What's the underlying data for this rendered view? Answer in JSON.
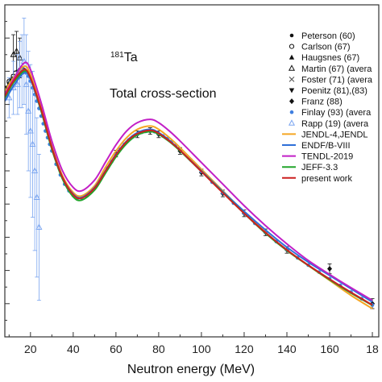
{
  "chart_data": {
    "type": "line",
    "xlabel": "Neutron energy (MeV)",
    "ylabel": "",
    "x_ticks": [
      "20",
      "40",
      "60",
      "80",
      "100",
      "120",
      "140",
      "160",
      "18"
    ],
    "xlim": [
      8,
      183
    ],
    "ylim": [
      0,
      10
    ],
    "grid": false,
    "legend_position": "top-right",
    "annotations": {
      "element_prefix": "181",
      "element_symbol": "Ta",
      "quantity": "Total cross-section"
    },
    "series": [
      {
        "name": "JENDL-4,JENDL",
        "color": "#f5a623",
        "kind": "line",
        "x": [
          8,
          12,
          17,
          20,
          25,
          30,
          35,
          40,
          44,
          50,
          55,
          60,
          65,
          70,
          76,
          80,
          85,
          90,
          100,
          110,
          120,
          130,
          140,
          150,
          160,
          170,
          180
        ],
        "y": [
          7.4,
          7.8,
          8.15,
          7.9,
          6.9,
          5.75,
          4.85,
          4.35,
          4.25,
          4.55,
          5.1,
          5.6,
          6.0,
          6.25,
          6.35,
          6.25,
          6.0,
          5.7,
          5.05,
          4.4,
          3.75,
          3.15,
          2.6,
          2.15,
          1.7,
          1.25,
          0.85
        ]
      },
      {
        "name": "ENDF/B-VIII",
        "color": "#2e6fd8",
        "kind": "line",
        "x": [
          8,
          12,
          17,
          20,
          25,
          30,
          35,
          40,
          44,
          50,
          55,
          60,
          65,
          70,
          76,
          80,
          85,
          90,
          100,
          110,
          120,
          130,
          140,
          150,
          160,
          170,
          180
        ],
        "y": [
          7.1,
          7.55,
          7.95,
          7.75,
          6.8,
          5.7,
          4.8,
          4.3,
          4.2,
          4.5,
          5.0,
          5.5,
          5.9,
          6.15,
          6.25,
          6.15,
          5.92,
          5.62,
          5.0,
          4.38,
          3.78,
          3.22,
          2.7,
          2.25,
          1.85,
          1.45,
          1.05
        ]
      },
      {
        "name": "TENDL-2019",
        "color": "#c21fc6",
        "kind": "line",
        "x": [
          8,
          12,
          17,
          20,
          25,
          30,
          35,
          40,
          44,
          50,
          55,
          60,
          65,
          70,
          76,
          80,
          85,
          90,
          100,
          110,
          120,
          130,
          140,
          150,
          160,
          170,
          180
        ],
        "y": [
          7.3,
          7.75,
          8.25,
          8.05,
          7.05,
          5.9,
          5.0,
          4.5,
          4.4,
          4.72,
          5.25,
          5.78,
          6.2,
          6.45,
          6.55,
          6.45,
          6.2,
          5.9,
          5.25,
          4.6,
          3.95,
          3.35,
          2.8,
          2.3,
          1.88,
          1.48,
          1.1
        ]
      },
      {
        "name": "JEFF-3.3",
        "color": "#22a52b",
        "kind": "line",
        "x": [
          8,
          12,
          17,
          20,
          25,
          30,
          35,
          40,
          44,
          50,
          55,
          60,
          65,
          70,
          76,
          80,
          85,
          90,
          100,
          110,
          120,
          130,
          140,
          150,
          160,
          170,
          180
        ],
        "y": [
          7.2,
          7.65,
          8.0,
          7.8,
          6.8,
          5.65,
          4.75,
          4.22,
          4.12,
          4.42,
          4.92,
          5.42,
          5.82,
          6.08,
          6.18,
          6.1,
          5.88,
          5.6,
          4.98,
          4.35,
          3.72,
          3.12,
          2.6,
          2.15,
          1.72,
          1.32,
          0.95
        ]
      },
      {
        "name": "present work",
        "color": "#cc1f1f",
        "kind": "line",
        "x": [
          8,
          12,
          17,
          20,
          25,
          30,
          35,
          40,
          44,
          50,
          55,
          60,
          65,
          70,
          76,
          80,
          85,
          90,
          100,
          110,
          120,
          130,
          140,
          150,
          160,
          170,
          180
        ],
        "y": [
          7.25,
          7.7,
          8.05,
          7.8,
          6.85,
          5.7,
          4.8,
          4.28,
          4.18,
          4.48,
          4.98,
          5.48,
          5.88,
          6.12,
          6.22,
          6.13,
          5.9,
          5.62,
          4.98,
          4.34,
          3.72,
          3.14,
          2.62,
          2.16,
          1.74,
          1.34,
          0.96
        ]
      },
      {
        "name": "Peterson (60)",
        "color": "#111111",
        "kind": "marker",
        "marker": "dot",
        "x": [
          9,
          10,
          11,
          12,
          13,
          14,
          15,
          16,
          17
        ],
        "y": [
          7.4,
          7.55,
          7.65,
          7.8,
          7.9,
          8.0,
          8.05,
          8.1,
          8.05
        ]
      },
      {
        "name": "Carlson (67)",
        "color": "#111111",
        "kind": "marker",
        "marker": "open-circle",
        "x": [
          10,
          11,
          12,
          13
        ],
        "y": [
          7.7,
          7.75,
          7.85,
          7.95
        ]
      },
      {
        "name": "Haugsnes (67)",
        "color": "#111111",
        "kind": "marker",
        "marker": "filled-triangle",
        "x": [
          9.5,
          10.5,
          11.5
        ],
        "y": [
          7.55,
          7.7,
          7.75
        ]
      },
      {
        "name": "Martin (67) (avera",
        "color": "#111111",
        "kind": "marker",
        "marker": "open-triangle",
        "x": [
          12,
          13.5,
          15
        ],
        "y": [
          8.5,
          8.6,
          8.4
        ],
        "yerr": [
          0.6,
          0.6,
          0.6
        ]
      },
      {
        "name": "Foster (71) (avera",
        "color": "#555555",
        "kind": "marker",
        "marker": "x",
        "x": [
          9,
          10.5,
          12
        ],
        "y": [
          7.5,
          7.65,
          7.8
        ]
      },
      {
        "name": "Poenitz (81),(83)",
        "color": "#111111",
        "kind": "marker",
        "marker": "filled-down-triangle",
        "x": [
          9,
          10,
          11
        ],
        "y": [
          7.5,
          7.6,
          7.72
        ]
      },
      {
        "name": "Franz (88)",
        "color": "#111111",
        "kind": "marker",
        "marker": "diamond",
        "x": [
          60,
          70,
          76,
          80,
          90,
          100,
          110,
          120,
          130,
          140,
          160,
          180
        ],
        "y": [
          5.52,
          6.1,
          6.2,
          6.1,
          5.6,
          4.95,
          4.32,
          3.72,
          3.15,
          2.62,
          2.05,
          1.0
        ],
        "yerr": [
          0.1,
          0.1,
          0.1,
          0.1,
          0.1,
          0.1,
          0.1,
          0.1,
          0.1,
          0.1,
          0.15,
          0.15
        ]
      },
      {
        "name": "Finlay (93) (avera",
        "color": "#3f7fe0",
        "kind": "marker",
        "marker": "dot",
        "x": [
          9,
          10,
          11,
          12,
          13,
          14,
          15,
          16,
          17,
          18,
          19,
          20,
          21,
          22,
          23,
          24,
          25,
          26,
          27,
          28,
          29,
          30,
          32,
          34,
          36,
          38,
          40,
          42,
          44,
          46,
          48,
          50,
          52,
          54,
          56,
          58,
          60,
          62,
          64,
          66,
          68,
          70,
          72,
          74,
          76,
          78,
          80,
          82,
          84,
          86,
          88,
          90,
          95,
          100,
          105,
          110,
          115,
          120,
          125,
          130,
          135,
          140,
          145,
          150,
          155,
          160,
          165,
          170,
          175,
          180
        ],
        "y": [
          7.3,
          7.45,
          7.6,
          7.75,
          7.85,
          7.95,
          8.0,
          8.05,
          8.0,
          7.95,
          7.85,
          7.7,
          7.5,
          7.3,
          7.1,
          6.88,
          6.65,
          6.42,
          6.2,
          6.0,
          5.8,
          5.6,
          5.2,
          4.88,
          4.6,
          4.4,
          4.26,
          4.18,
          4.18,
          4.24,
          4.36,
          4.5,
          4.68,
          4.88,
          5.08,
          5.28,
          5.48,
          5.65,
          5.8,
          5.93,
          6.03,
          6.1,
          6.16,
          6.19,
          6.2,
          6.18,
          6.12,
          6.05,
          5.97,
          5.88,
          5.77,
          5.65,
          5.33,
          4.98,
          4.66,
          4.34,
          4.03,
          3.72,
          3.42,
          3.14,
          2.87,
          2.62,
          2.38,
          2.16,
          1.95,
          1.75,
          1.55,
          1.35,
          1.15,
          0.96
        ]
      },
      {
        "name": "Rapp (19) (avera",
        "color": "#7aa5f0",
        "kind": "marker",
        "marker": "open-triangle",
        "x": [
          10,
          12,
          14,
          15,
          16,
          17,
          18,
          19,
          20,
          21,
          22,
          23,
          24
        ],
        "y": [
          7.2,
          7.5,
          7.6,
          7.9,
          8.0,
          8.3,
          7.6,
          6.8,
          6.2,
          5.8,
          5.0,
          4.2,
          3.3
        ],
        "yerr": [
          0.6,
          0.8,
          0.9,
          1.0,
          1.1,
          1.3,
          1.5,
          1.8,
          2.0,
          2.2,
          2.4,
          2.4,
          2.2
        ]
      }
    ]
  }
}
